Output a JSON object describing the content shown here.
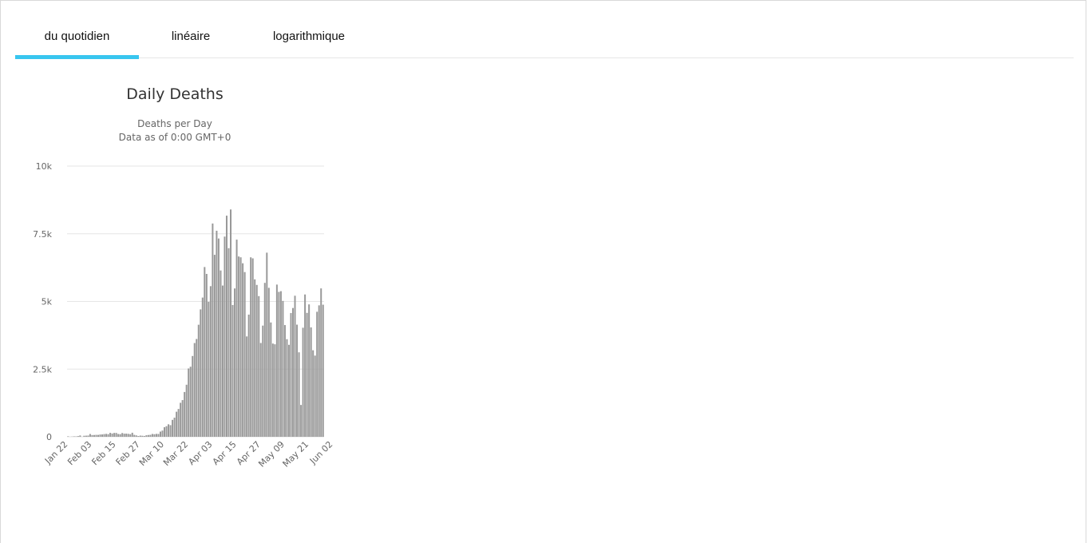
{
  "tabs": [
    {
      "label": "du quotidien",
      "active": true
    },
    {
      "label": "linéaire",
      "active": false
    },
    {
      "label": "logarithmique",
      "active": false
    }
  ],
  "colors": {
    "accent": "#38c6ef",
    "bar": "#999999",
    "grid": "#e6e6e6"
  },
  "chart_data": {
    "type": "bar",
    "title": "Daily Deaths",
    "subtitle_lines": [
      "Deaths per Day",
      "Data as of 0:00 GMT+0"
    ],
    "xlabel": "",
    "ylabel": "",
    "ylim": [
      0,
      10000
    ],
    "y_ticks": [
      0,
      2500,
      5000,
      7500,
      10000
    ],
    "y_tick_labels": [
      "0",
      "2.5k",
      "5k",
      "7.5k",
      "10k"
    ],
    "x_tick_labels": [
      "Jan 22",
      "Feb 03",
      "Feb 15",
      "Feb 27",
      "Mar 10",
      "Mar 22",
      "Apr 03",
      "Apr 15",
      "Apr 27",
      "May 09",
      "May 21",
      "Jun 02"
    ],
    "grid": true,
    "legend": "none",
    "series": [
      {
        "categories_start": "Jan 22",
        "categories_end": "Jun 05",
        "values": [
          17,
          1,
          8,
          16,
          14,
          26,
          49,
          2,
          38,
          42,
          46,
          103,
          64,
          66,
          72,
          70,
          85,
          87,
          100,
          108,
          97,
          146,
          121,
          143,
          142,
          104,
          98,
          139,
          115,
          118,
          109,
          97,
          150,
          71,
          52,
          29,
          44,
          38,
          31,
          57,
          66,
          73,
          105,
          95,
          108,
          105,
          192,
          230,
          353,
          393,
          462,
          430,
          625,
          707,
          926,
          1029,
          1256,
          1356,
          1655,
          1924,
          2524,
          2589,
          2985,
          3464,
          3613,
          4140,
          4707,
          5144,
          6272,
          6017,
          4986,
          5565,
          7879,
          6723,
          7612,
          7325,
          6145,
          5588,
          7396,
          8169,
          6969,
          8398,
          4869,
          5480,
          7284,
          6661,
          6631,
          6410,
          6085,
          3708,
          4514,
          6630,
          6592,
          5816,
          5611,
          5197,
          3465,
          4108,
          5687,
          6802,
          5503,
          4224,
          3444,
          3418,
          5623,
          5353,
          5379,
          5020,
          4128,
          3606,
          3398,
          4571,
          4758,
          5211,
          4143,
          3121,
          1176,
          4029,
          5258,
          4578,
          4891,
          4041,
          3197,
          3000,
          4619,
          4856,
          5482,
          4880
        ]
      }
    ]
  }
}
